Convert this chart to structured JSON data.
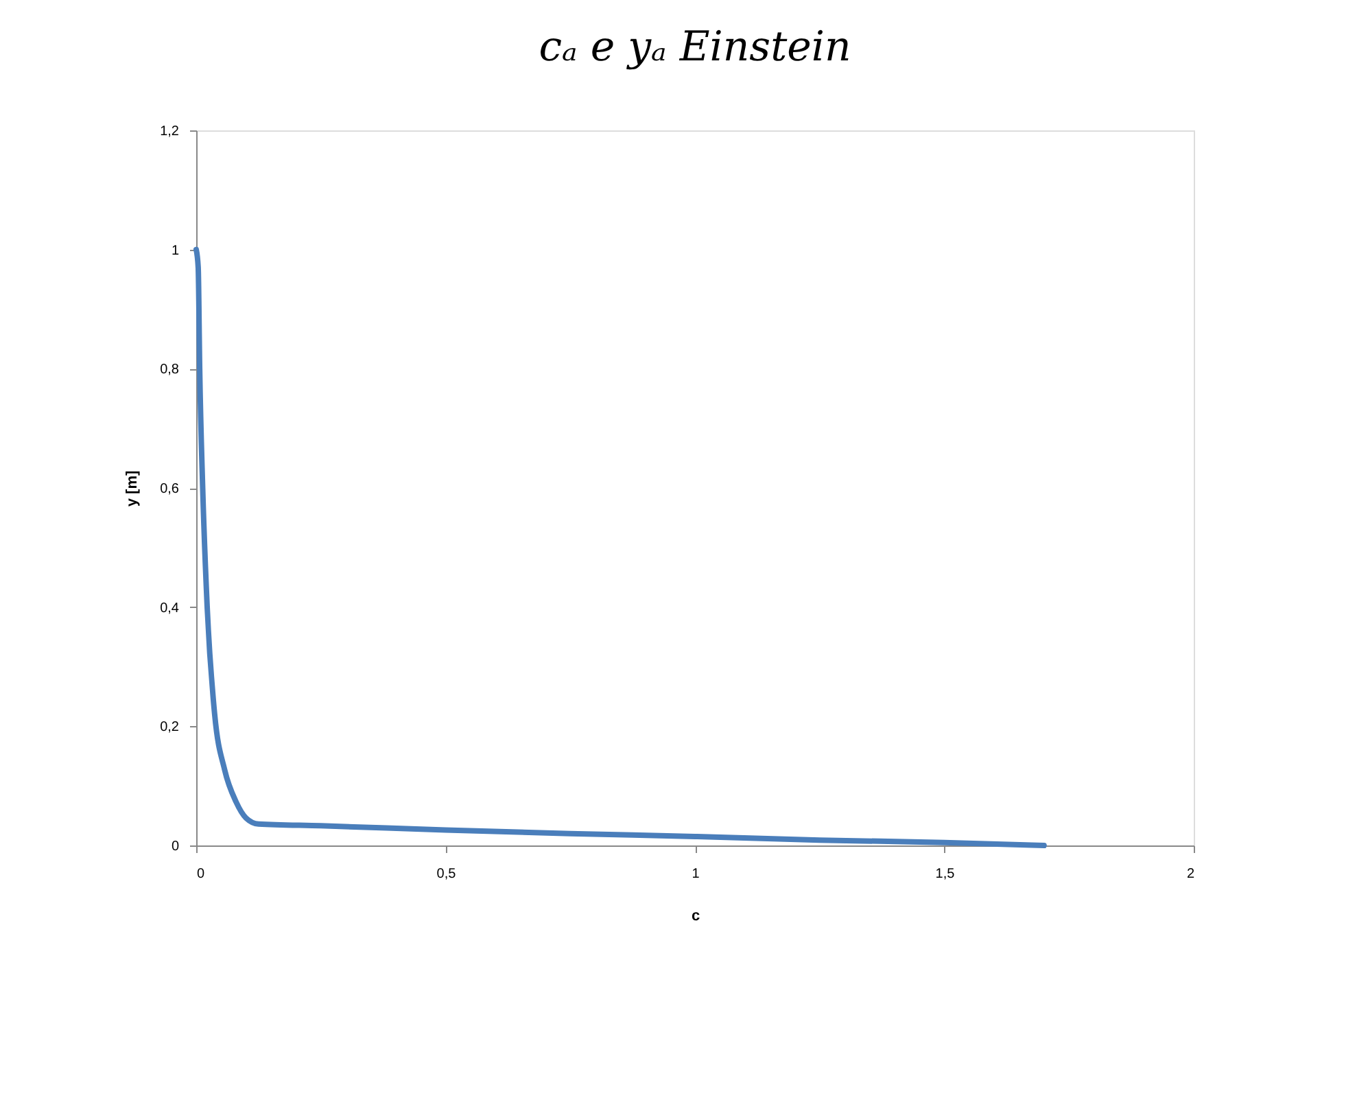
{
  "chart_data": {
    "type": "line",
    "title": "cₐ e yₐ Einstein",
    "xlabel": "c",
    "ylabel": "y [m]",
    "x": [
      0,
      0.004,
      0.007,
      0.013,
      0.022,
      0.037,
      0.057,
      0.08,
      0.1,
      0.125,
      0.25,
      0.5,
      0.75,
      1.0,
      1.25,
      1.5,
      1.7
    ],
    "series": [
      {
        "color": "#4a7ebb",
        "values": [
          1.0,
          0.97,
          0.8,
          0.6,
          0.4,
          0.22,
          0.127,
          0.073,
          0.046,
          0.036,
          0.033,
          0.026,
          0.02,
          0.015,
          0.009,
          0.005,
          0.0
        ]
      }
    ],
    "xlim": [
      0,
      2
    ],
    "ylim": [
      0,
      1.2
    ],
    "xticks": [
      0,
      {
        "value": 0.5,
        "label": "0,5"
      },
      1,
      {
        "value": 1.5,
        "label": "1,5"
      },
      2
    ],
    "yticks": [
      0,
      {
        "value": 0.2,
        "label": "0,2"
      },
      {
        "value": 0.4,
        "label": "0,4"
      },
      {
        "value": 0.6,
        "label": "0,6"
      },
      {
        "value": 0.8,
        "label": "0,8"
      },
      1,
      {
        "value": 1.2,
        "label": "1,2"
      }
    ],
    "grid": false,
    "marker": "none",
    "line_style": "solid"
  }
}
